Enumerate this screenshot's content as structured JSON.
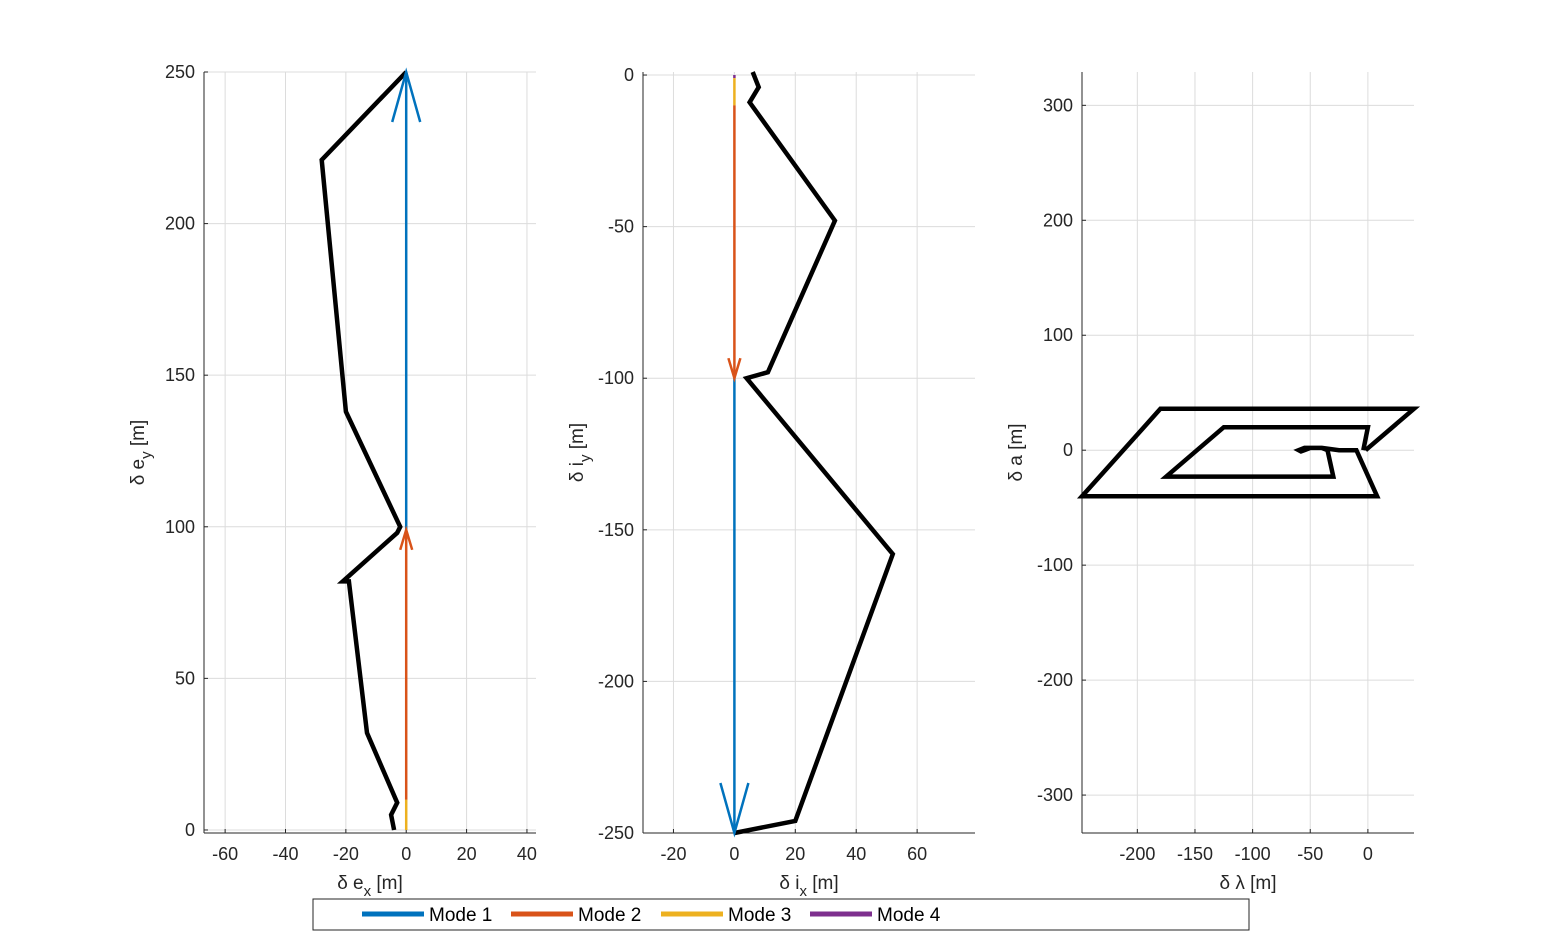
{
  "colors": {
    "mode1": "#0072BD",
    "mode2": "#D95319",
    "mode3": "#EDB120",
    "mode4": "#7E2F8E",
    "trajectory": "#000000",
    "grid": "#dcdcdc",
    "axis": "#262626"
  },
  "chart_data": [
    {
      "type": "line",
      "xlabel_main": "δ e",
      "xlabel_sub": "x",
      "xlabel_unit": "[m]",
      "ylabel_main": "δ e",
      "ylabel_sub": "y",
      "ylabel_unit": "[m]",
      "xlim": [
        -67,
        43
      ],
      "ylim": [
        -1,
        250
      ],
      "xticks": [
        -60,
        -40,
        -20,
        0,
        20,
        40
      ],
      "yticks": [
        0,
        50,
        100,
        150,
        200,
        250
      ],
      "grid": true,
      "series": [
        {
          "role": "trajectory",
          "x": [
            -4,
            -5,
            -3,
            -13,
            -19,
            -21,
            -3,
            -2,
            -20,
            -28,
            0
          ],
          "y": [
            0,
            5,
            9,
            32,
            82,
            82,
            98,
            100,
            138,
            221,
            250
          ]
        },
        {
          "role": "mode3",
          "x": [
            0,
            0
          ],
          "y": [
            0,
            10
          ]
        },
        {
          "role": "mode2",
          "x": [
            0,
            0
          ],
          "y": [
            10,
            99
          ]
        },
        {
          "role": "mode1",
          "x": [
            0,
            0
          ],
          "y": [
            99,
            250
          ]
        }
      ],
      "arrows": [
        {
          "role": "mode2",
          "tip": [
            0,
            99
          ],
          "dir": "up",
          "head": "small"
        },
        {
          "role": "mode1",
          "tip": [
            0,
            250
          ],
          "dir": "up",
          "head": "large"
        }
      ]
    },
    {
      "type": "line",
      "xlabel_main": "δ i",
      "xlabel_sub": "x",
      "xlabel_unit": "[m]",
      "ylabel_main": "δ i",
      "ylabel_sub": "y",
      "ylabel_unit": "[m]",
      "xlim": [
        -30,
        79
      ],
      "ylim": [
        -250,
        1
      ],
      "xticks": [
        -20,
        0,
        20,
        40,
        60
      ],
      "yticks": [
        -250,
        -200,
        -150,
        -100,
        -50,
        0
      ],
      "grid": true,
      "series": [
        {
          "role": "trajectory",
          "x": [
            0,
            20,
            52,
            4,
            11,
            33,
            5,
            8,
            6
          ],
          "y": [
            -250,
            -246,
            -158,
            -100,
            -98,
            -48,
            -9,
            -4,
            1
          ]
        },
        {
          "role": "mode4",
          "x": [
            0,
            0
          ],
          "y": [
            0,
            -1
          ]
        },
        {
          "role": "mode3",
          "x": [
            0,
            0
          ],
          "y": [
            -1,
            -10
          ]
        },
        {
          "role": "mode2",
          "x": [
            0,
            0
          ],
          "y": [
            -10,
            -100
          ]
        },
        {
          "role": "mode1",
          "x": [
            0,
            0
          ],
          "y": [
            -100,
            -250
          ]
        }
      ],
      "arrows": [
        {
          "role": "mode2",
          "tip": [
            0,
            -100
          ],
          "dir": "down",
          "head": "small"
        },
        {
          "role": "mode1",
          "tip": [
            0,
            -250
          ],
          "dir": "down",
          "head": "large"
        }
      ]
    },
    {
      "type": "line",
      "xlabel_main": "δ λ",
      "xlabel_sub": "",
      "xlabel_unit": "[m]",
      "ylabel_main": "δ a",
      "ylabel_sub": "",
      "ylabel_unit": "[m]",
      "xlim": [
        -248,
        40
      ],
      "ylim": [
        -333,
        329
      ],
      "xticks": [
        -200,
        -150,
        -100,
        -50,
        0
      ],
      "yticks": [
        -300,
        -200,
        -100,
        0,
        100,
        200,
        300
      ],
      "grid": true,
      "series": [
        {
          "role": "trajectory",
          "x": [
            -2,
            40,
            -180,
            -248,
            8,
            -10,
            -25,
            -40,
            -55,
            -60,
            -58,
            -55,
            -50,
            -50,
            -40,
            -35,
            -30,
            -175,
            -125,
            0,
            -4
          ],
          "y": [
            0,
            36,
            36,
            -40,
            -40,
            0,
            0,
            2,
            2,
            0,
            -1,
            0,
            2,
            2,
            2,
            0,
            -23,
            -23,
            20,
            20,
            0
          ]
        }
      ],
      "arrows": []
    }
  ],
  "legend": {
    "items": [
      {
        "role": "mode1",
        "label": "Mode 1"
      },
      {
        "role": "mode2",
        "label": "Mode 2"
      },
      {
        "role": "mode3",
        "label": "Mode 3"
      },
      {
        "role": "mode4",
        "label": "Mode 4"
      }
    ]
  }
}
